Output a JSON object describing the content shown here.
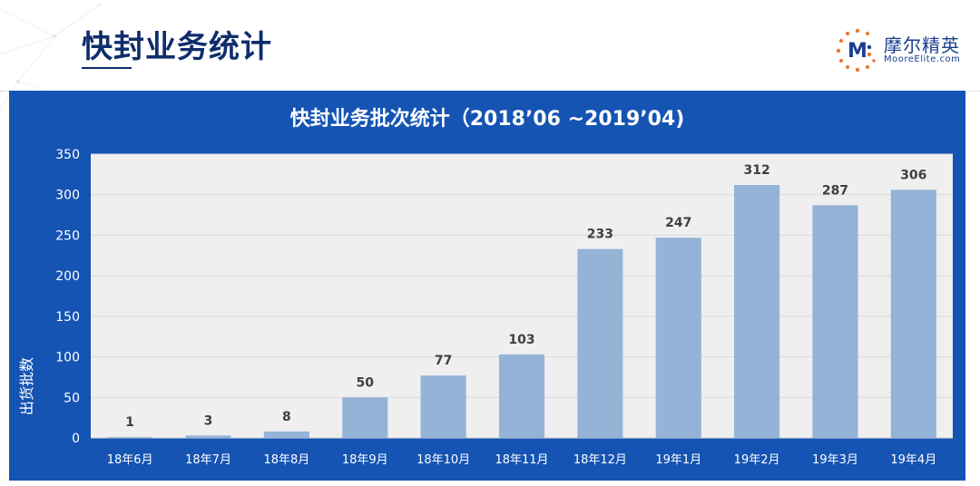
{
  "page": {
    "title": "快封业务统计"
  },
  "brand": {
    "logo_letter": "M",
    "name": "摩尔精英",
    "url": "MooreElite.com",
    "accent_color": "#e8762d",
    "brand_color": "#1b3f8f"
  },
  "chart_data": {
    "type": "bar",
    "title": "快封业务批次统计（2018’06 ~2019’04)",
    "xlabel": "",
    "ylabel": "出货批数",
    "categories": [
      "18年6月",
      "18年7月",
      "18年8月",
      "18年9月",
      "18年10月",
      "18年11月",
      "18年12月",
      "19年1月",
      "19年2月",
      "19年3月",
      "19年4月"
    ],
    "values": [
      1,
      3,
      8,
      50,
      77,
      103,
      233,
      247,
      312,
      287,
      306
    ],
    "ylim": [
      0,
      350
    ],
    "yticks": [
      0,
      50,
      100,
      150,
      200,
      250,
      300,
      350
    ],
    "grid": true,
    "legend": "none",
    "bar_color": "#95b3d7",
    "panel_color": "#1554b3",
    "plot_bg": "#efefef"
  }
}
